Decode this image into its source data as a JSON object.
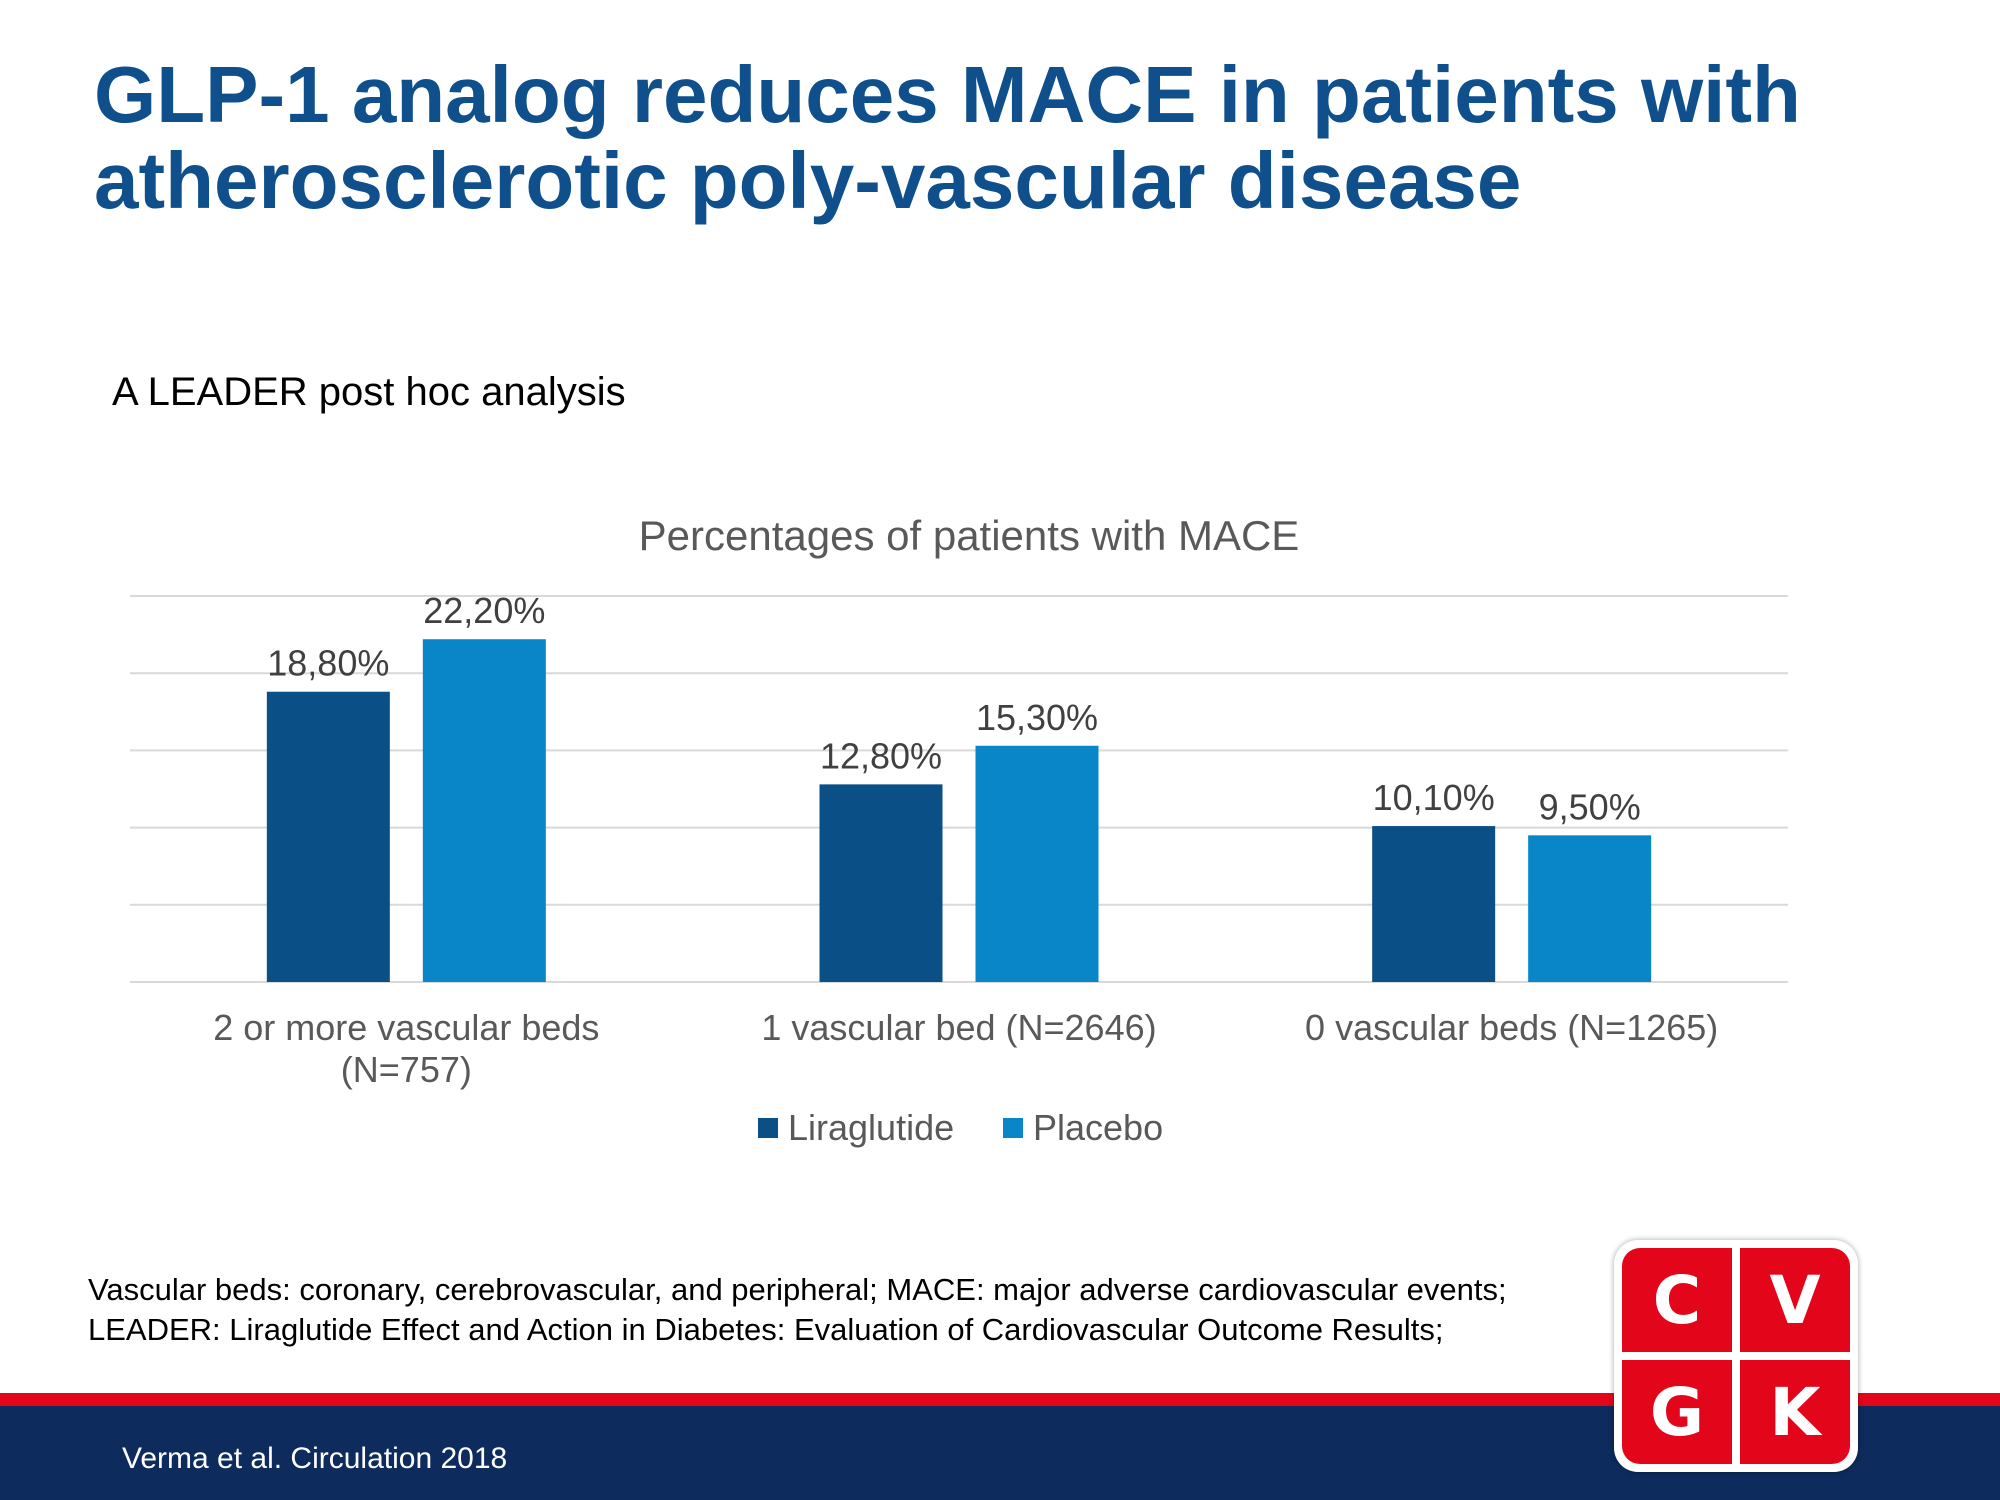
{
  "slide": {
    "title_lines": [
      "GLP-1 analog reduces MACE in patients with",
      "atherosclerotic poly-vascular disease"
    ],
    "subtitle": "A LEADER post hoc analysis",
    "footnote_lines": [
      "Vascular beds: coronary, cerebrovascular, and peripheral; MACE: major adverse cardiovascular events;",
      "LEADER: Liraglutide Effect and Action in Diabetes: Evaluation of Cardiovascular Outcome Results;"
    ],
    "citation": "Verma et al. Circulation 2018",
    "logo_letters": [
      "C",
      "V",
      "G",
      "K"
    ]
  },
  "chart_data": {
    "type": "bar",
    "title": "Percentages of patients with MACE",
    "categories": [
      [
        "2 or more vascular beds",
        "(N=757)"
      ],
      [
        "1 vascular bed (N=2646)"
      ],
      [
        "0 vascular beds (N=1265)"
      ]
    ],
    "series": [
      {
        "name": "Liraglutide",
        "color": "#0b4f87",
        "values": [
          18.8,
          12.8,
          10.1
        ],
        "labels": [
          "18,80%",
          "12,80%",
          "10,10%"
        ]
      },
      {
        "name": "Placebo",
        "color": "#0886c8",
        "values": [
          22.2,
          15.3,
          9.5
        ],
        "labels": [
          "22,20%",
          "15,30%",
          "9,50%"
        ]
      }
    ],
    "ylim": [
      0,
      25
    ],
    "grid": true,
    "legend": "bottom"
  },
  "colors": {
    "title": "#0e4f8c",
    "band_red": "#e3061a",
    "band_blue": "#0d2b5c",
    "gridline": "#d9d9d9"
  }
}
